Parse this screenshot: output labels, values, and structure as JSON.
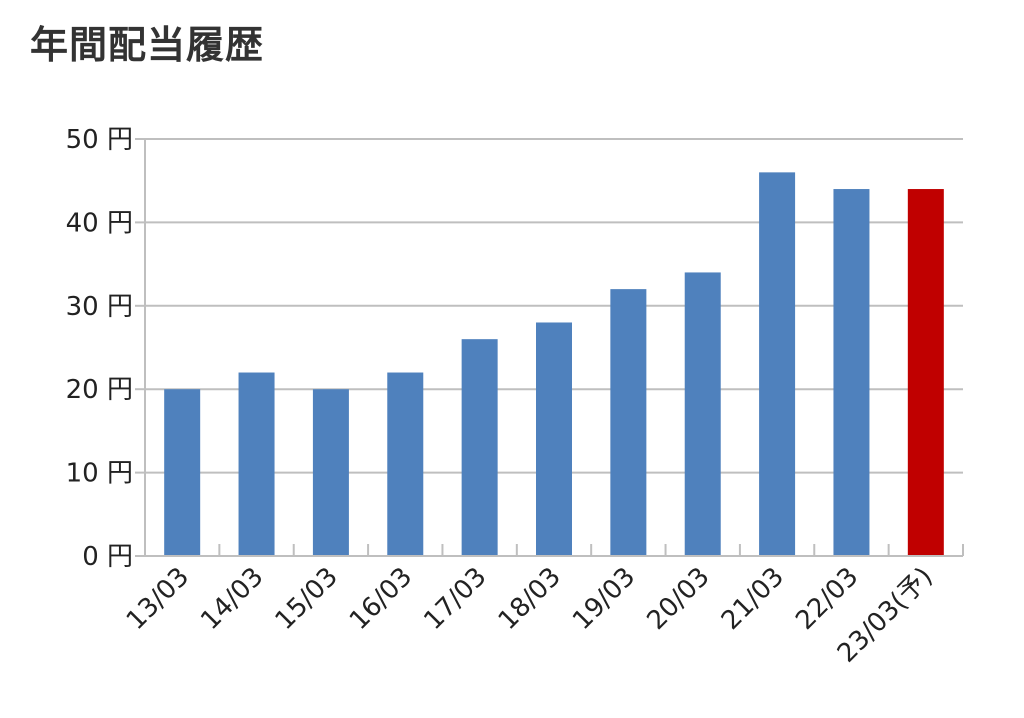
{
  "chart_data": {
    "type": "bar",
    "title": "年間配当履歴",
    "categories": [
      "13/03",
      "14/03",
      "15/03",
      "16/03",
      "17/03",
      "18/03",
      "19/03",
      "20/03",
      "21/03",
      "22/03",
      "23/03(予)"
    ],
    "values": [
      20,
      22,
      20,
      22,
      26,
      28,
      32,
      34,
      46,
      44,
      44
    ],
    "y_unit": "円",
    "ylim": [
      0,
      50
    ],
    "y_ticks": [
      0,
      10,
      20,
      30,
      40,
      50
    ],
    "grid": true,
    "colors": {
      "actual": "#4f81bd",
      "forecast": "#c00000",
      "grid": "#bfbfbf"
    },
    "forecast_index": 10
  }
}
